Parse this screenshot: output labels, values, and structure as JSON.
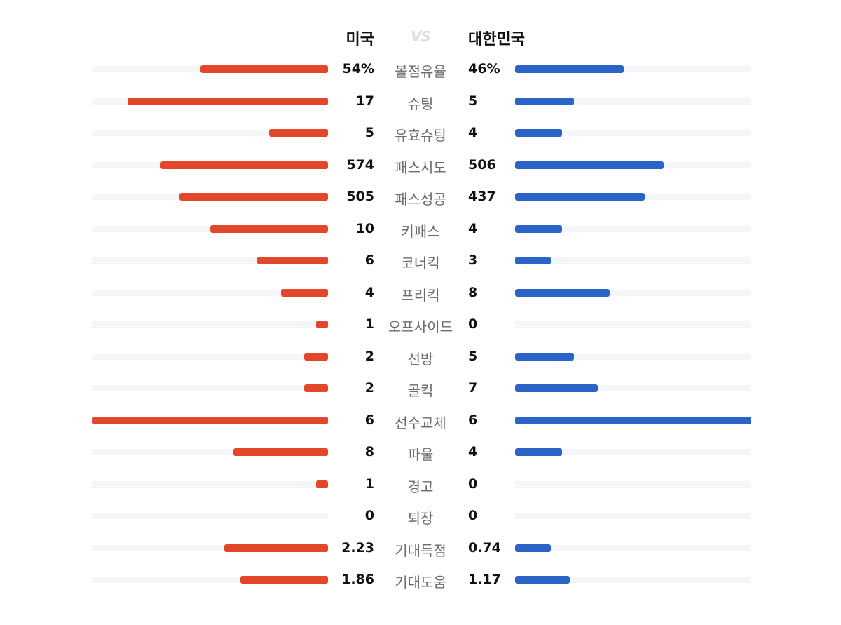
{
  "header": {
    "home_team": "미국",
    "vs": "VS",
    "away_team": "대한민국"
  },
  "colors": {
    "home": "#e3472a",
    "away": "#2a64c9",
    "track": "#f4f6fa"
  },
  "chart_data": {
    "type": "bar",
    "categories": [
      "볼점유율",
      "슈팅",
      "유효슈팅",
      "패스시도",
      "패스성공",
      "키패스",
      "코너킥",
      "프리킥",
      "오프사이드",
      "선방",
      "골킥",
      "선수교체",
      "파울",
      "경고",
      "퇴장",
      "기대득점",
      "기대도움"
    ],
    "series": [
      {
        "name": "미국",
        "labels": [
          "54%",
          "17",
          "5",
          "574",
          "505",
          "10",
          "6",
          "4",
          "1",
          "2",
          "2",
          "6",
          "8",
          "1",
          "0",
          "2.23",
          "1.86"
        ],
        "values": [
          54,
          17,
          5,
          574,
          505,
          10,
          6,
          4,
          1,
          2,
          2,
          6,
          8,
          1,
          0,
          2.23,
          1.86
        ],
        "fill": [
          0.54,
          0.85,
          0.25,
          0.71,
          0.63,
          0.5,
          0.3,
          0.2,
          0.05,
          0.1,
          0.1,
          1.0,
          0.4,
          0.05,
          0,
          0.44,
          0.37
        ]
      },
      {
        "name": "대한민국",
        "labels": [
          "46%",
          "5",
          "4",
          "506",
          "437",
          "4",
          "3",
          "8",
          "0",
          "5",
          "7",
          "6",
          "4",
          "0",
          "0",
          "0.74",
          "1.17"
        ],
        "values": [
          46,
          5,
          4,
          506,
          437,
          4,
          3,
          8,
          0,
          5,
          7,
          6,
          4,
          0,
          0,
          0.74,
          1.17
        ],
        "fill": [
          0.46,
          0.25,
          0.2,
          0.63,
          0.55,
          0.2,
          0.15,
          0.4,
          0,
          0.25,
          0.35,
          1.0,
          0.2,
          0,
          0,
          0.15,
          0.23
        ]
      }
    ]
  }
}
